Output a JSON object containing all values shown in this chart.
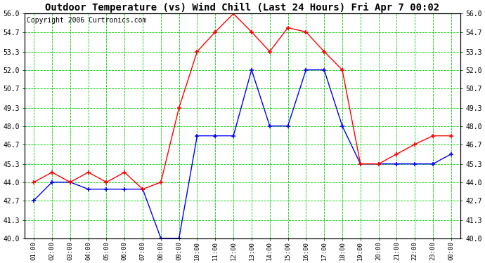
{
  "title": "Outdoor Temperature (vs) Wind Chill (Last 24 Hours) Fri Apr 7 00:02",
  "copyright": "Copyright 2006 Curtronics.com",
  "x_labels": [
    "01:00",
    "02:00",
    "03:00",
    "04:00",
    "05:00",
    "06:00",
    "07:00",
    "08:00",
    "09:00",
    "10:00",
    "11:00",
    "12:00",
    "13:00",
    "14:00",
    "15:00",
    "16:00",
    "17:00",
    "18:00",
    "19:00",
    "20:00",
    "21:00",
    "22:00",
    "23:00",
    "00:00"
  ],
  "y_min": 40.0,
  "y_max": 56.0,
  "y_ticks": [
    40.0,
    41.3,
    42.7,
    44.0,
    45.3,
    46.7,
    48.0,
    49.3,
    50.7,
    52.0,
    53.3,
    54.7,
    56.0
  ],
  "temp_color": "#ff0000",
  "wind_color": "#0000ff",
  "temp_data": [
    44.0,
    44.7,
    44.0,
    44.7,
    44.0,
    44.7,
    43.5,
    44.0,
    49.3,
    53.3,
    54.7,
    56.0,
    54.7,
    53.3,
    55.0,
    54.7,
    53.3,
    52.0,
    45.3,
    45.3,
    46.0,
    46.7,
    47.3,
    47.3
  ],
  "wind_data": [
    42.7,
    44.0,
    44.0,
    43.5,
    43.5,
    43.5,
    43.5,
    40.0,
    40.0,
    47.3,
    47.3,
    47.3,
    52.0,
    48.0,
    48.0,
    52.0,
    52.0,
    48.0,
    45.3,
    45.3,
    45.3,
    45.3,
    45.3,
    46.0
  ],
  "background_color": "#ffffff",
  "grid_color": "#00cc00",
  "title_fontsize": 10,
  "copyright_fontsize": 7
}
